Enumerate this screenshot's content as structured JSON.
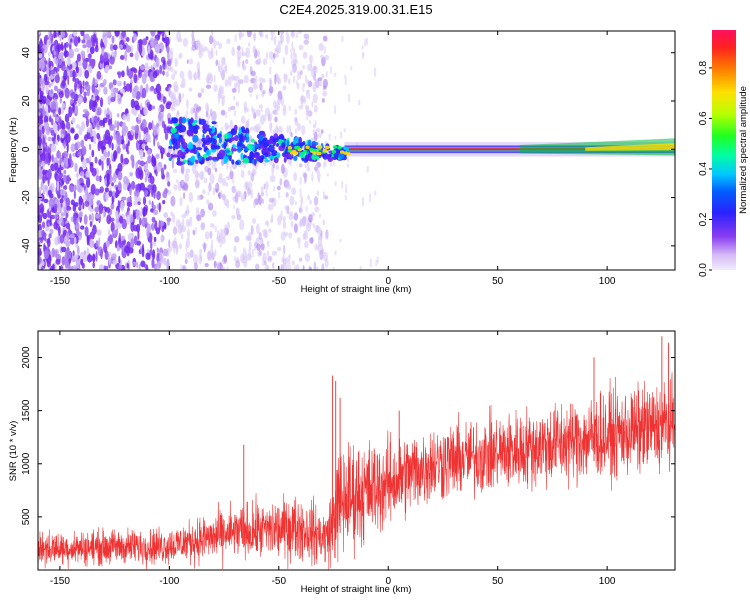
{
  "title": "C2E4.2025.319.00.31.E15",
  "chart_data": [
    {
      "type": "heatmap",
      "name": "spectrogram",
      "xlabel": "Height of straight line (km)",
      "ylabel": "Frequency (Hz)",
      "xlim": [
        -160,
        131
      ],
      "ylim": [
        -50,
        49
      ],
      "xticks": [
        -150,
        -100,
        -50,
        0,
        50,
        100
      ],
      "yticks": [
        -40,
        -20,
        0,
        20,
        40
      ],
      "colorbar": {
        "label": "Normalized spectral amplitude",
        "range": [
          0.0,
          0.95
        ],
        "ticks": [
          0.0,
          0.2,
          0.4,
          0.6,
          0.8
        ],
        "colormap": [
          "#e0d0f8",
          "#7a2cf0",
          "#2020ff",
          "#00c8ff",
          "#00ff60",
          "#c0ff00",
          "#ffe000",
          "#ff7000",
          "#ff1050"
        ]
      },
      "features": {
        "noise_region_x": [
          -160,
          -28
        ],
        "dense_noise_x": [
          -160,
          -100
        ],
        "signal_line_freq_hz": 0,
        "signal_clean_x": [
          -20,
          131
        ],
        "blob_cluster_x": [
          -100,
          -20
        ],
        "blob_cluster_freq_range_hz": [
          -10,
          12
        ]
      }
    },
    {
      "type": "line",
      "name": "snr",
      "xlabel": "Height of straight line (km)",
      "ylabel": "SNR (10 * v/v)",
      "xlim": [
        -160,
        131
      ],
      "ylim": [
        0,
        2250
      ],
      "xticks": [
        -150,
        -100,
        -50,
        0,
        50,
        100
      ],
      "yticks": [
        500,
        1000,
        1500,
        2000
      ],
      "series": [
        {
          "name": "SNR",
          "color": "#ef3333",
          "trend": [
            {
              "x": -160,
              "center": 200,
              "spread": 140
            },
            {
              "x": -100,
              "center": 230,
              "spread": 160
            },
            {
              "x": -70,
              "center": 350,
              "spread": 230
            },
            {
              "x": -40,
              "center": 400,
              "spread": 280
            },
            {
              "x": -28,
              "center": 300,
              "spread": 250
            },
            {
              "x": -22,
              "center": 650,
              "spread": 500
            },
            {
              "x": 0,
              "center": 820,
              "spread": 380
            },
            {
              "x": 20,
              "center": 1000,
              "spread": 330
            },
            {
              "x": 50,
              "center": 1100,
              "spread": 330
            },
            {
              "x": 80,
              "center": 1200,
              "spread": 360
            },
            {
              "x": 110,
              "center": 1300,
              "spread": 380
            },
            {
              "x": 131,
              "center": 1380,
              "spread": 380
            }
          ],
          "spikes": [
            {
              "x": -66,
              "y": 1180
            },
            {
              "x": -25.5,
              "y": 1830
            },
            {
              "x": -24,
              "y": 1780
            },
            {
              "x": -22,
              "y": 1620
            },
            {
              "x": 5,
              "y": 1500
            },
            {
              "x": 94,
              "y": 2000
            },
            {
              "x": 125,
              "y": 2200
            },
            {
              "x": 128,
              "y": 2140
            }
          ]
        }
      ]
    }
  ]
}
